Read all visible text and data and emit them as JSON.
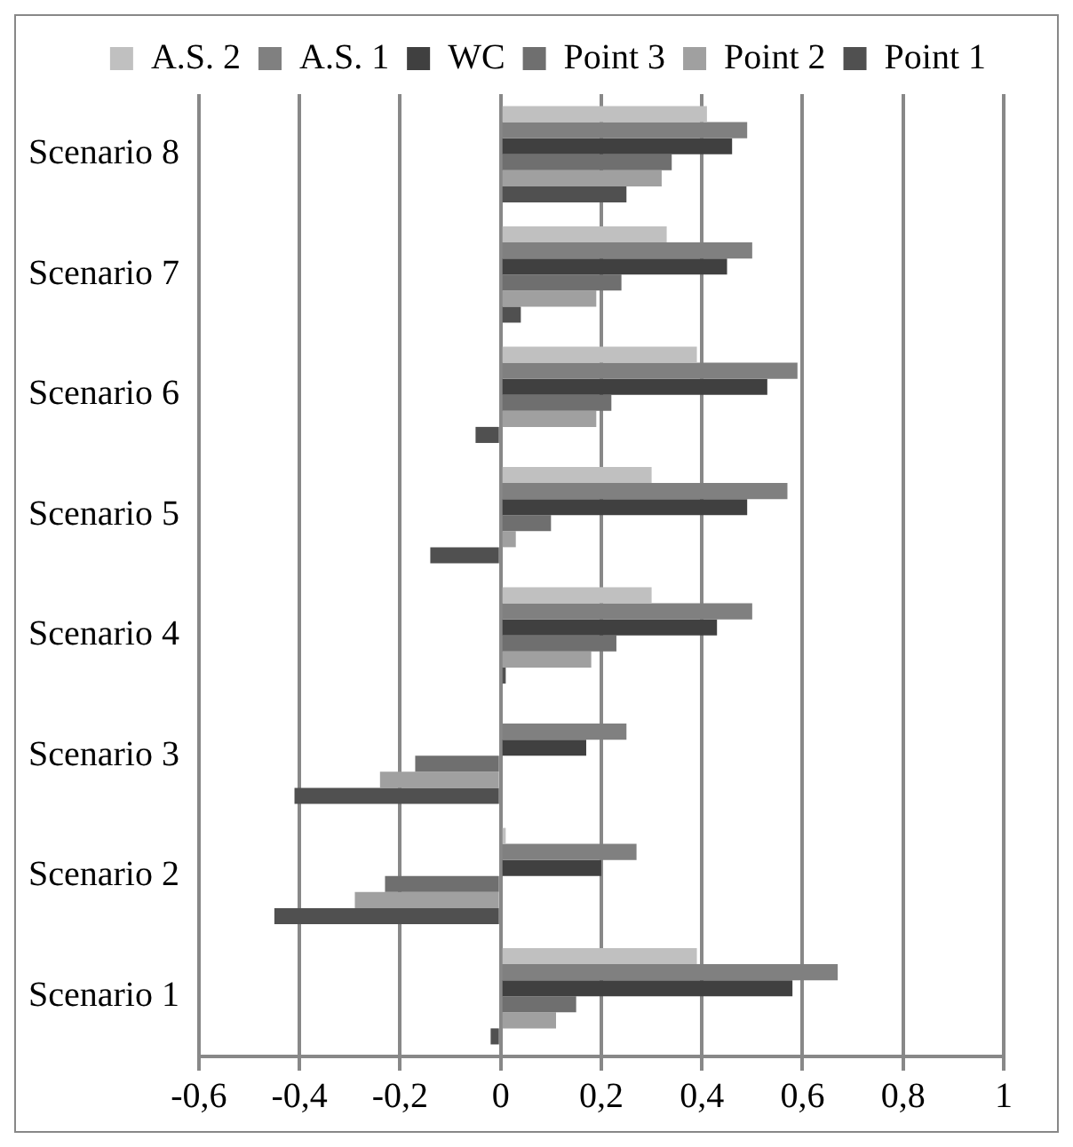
{
  "chart_data": {
    "type": "bar",
    "orientation": "horizontal",
    "categories": [
      "Scenario 8",
      "Scenario 7",
      "Scenario 6",
      "Scenario 5",
      "Scenario 4",
      "Scenario 3",
      "Scenario 2",
      "Scenario 1"
    ],
    "series": [
      {
        "name": "A.S. 2",
        "color": "#c0c0c0",
        "values": [
          0.41,
          0.33,
          0.39,
          0.3,
          0.3,
          0,
          0.01,
          0.39
        ]
      },
      {
        "name": "A.S. 1",
        "color": "#808080",
        "values": [
          0.49,
          0.5,
          0.59,
          0.57,
          0.5,
          0.25,
          0.27,
          0.67
        ]
      },
      {
        "name": "WC",
        "color": "#404040",
        "values": [
          0.46,
          0.45,
          0.53,
          0.49,
          0.43,
          0.17,
          0.2,
          0.58
        ]
      },
      {
        "name": "Point 3",
        "color": "#6f6f6f",
        "values": [
          0.34,
          0.24,
          0.22,
          0.1,
          0.23,
          -0.17,
          -0.23,
          0.15
        ]
      },
      {
        "name": "Point 2",
        "color": "#a0a0a0",
        "values": [
          0.32,
          0.19,
          0.19,
          0.03,
          0.18,
          -0.24,
          -0.29,
          0.11
        ]
      },
      {
        "name": "Point 1",
        "color": "#505050",
        "values": [
          0.25,
          0.04,
          -0.05,
          -0.14,
          0.01,
          -0.41,
          -0.45,
          -0.02
        ]
      }
    ],
    "xlim": [
      -0.6,
      1
    ],
    "xticks": [
      {
        "value": -0.6,
        "label": "-0,6"
      },
      {
        "value": -0.4,
        "label": "-0,4"
      },
      {
        "value": -0.2,
        "label": "-0,2"
      },
      0,
      {
        "value": 0.2,
        "label": "0,2"
      },
      {
        "value": 0.4,
        "label": "0,4"
      },
      {
        "value": 0.6,
        "label": "0,6"
      },
      {
        "value": 0.8,
        "label": "0,8"
      },
      1
    ],
    "grid": "x",
    "legend": "top"
  }
}
